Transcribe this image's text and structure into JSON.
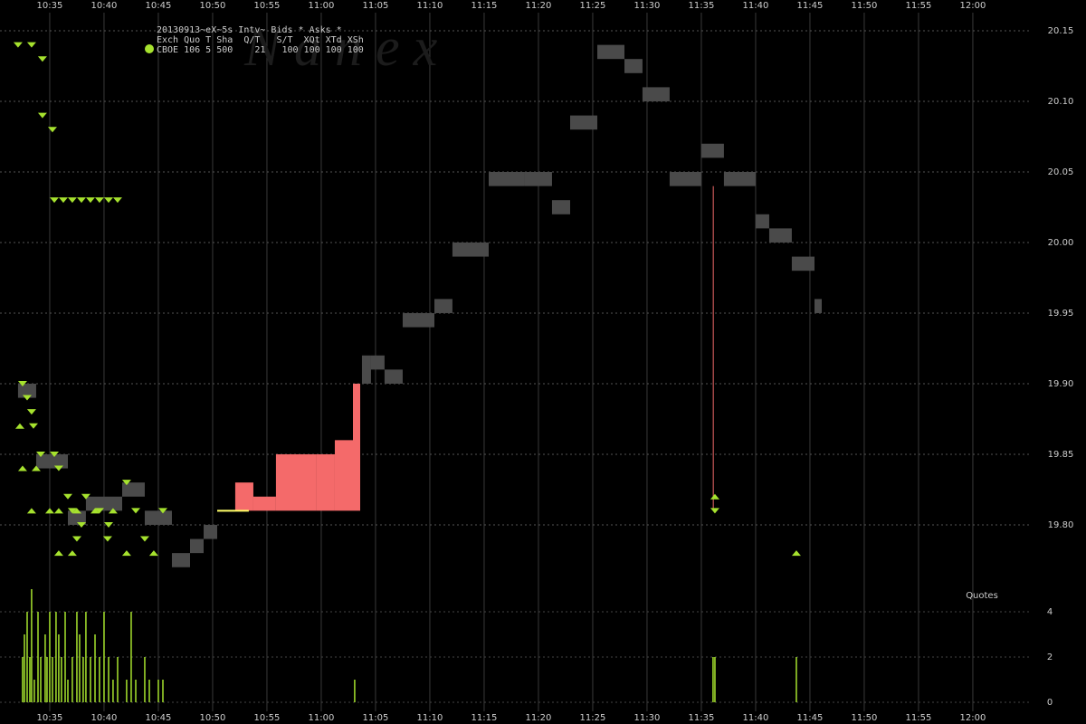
{
  "chart_data": {
    "type": "quote",
    "header": [
      "20130913~eX~5s Intv~ Bids * Asks *",
      "Exch Quo T Sha  Q/T   S/T  XQt XTd XSh",
      "CBOE 106 5 500    21   100 100 100 100"
    ],
    "watermark": "N a n e x",
    "quotes_label": "Quotes",
    "xlim": [
      630.42,
      722.92
    ],
    "xticks": [
      {
        "value": 635,
        "label": "10:35"
      },
      {
        "value": 640,
        "label": "10:40"
      },
      {
        "value": 645,
        "label": "10:45"
      },
      {
        "value": 650,
        "label": "10:50"
      },
      {
        "value": 655,
        "label": "10:55"
      },
      {
        "value": 660,
        "label": "11:00"
      },
      {
        "value": 665,
        "label": "11:05"
      },
      {
        "value": 670,
        "label": "11:10"
      },
      {
        "value": 675,
        "label": "11:15"
      },
      {
        "value": 680,
        "label": "11:20"
      },
      {
        "value": 685,
        "label": "11:25"
      },
      {
        "value": 690,
        "label": "11:30"
      },
      {
        "value": 695,
        "label": "11:35"
      },
      {
        "value": 700,
        "label": "11:40"
      },
      {
        "value": 705,
        "label": "11:45"
      },
      {
        "value": 710,
        "label": "11:50"
      },
      {
        "value": 715,
        "label": "11:55"
      },
      {
        "value": 720,
        "label": "12:00"
      }
    ],
    "ylim": [
      19.7615,
      20.1718
    ],
    "yticks": [
      20.15,
      {
        "value": 20.1,
        "label": "20.10"
      },
      20.05,
      {
        "value": 20.0,
        "label": "20.00"
      },
      19.95,
      {
        "value": 19.9,
        "label": "19.90"
      },
      19.85,
      {
        "value": 19.8,
        "label": "19.80"
      }
    ],
    "nbbo": {
      "color": "#4a4a4a",
      "x": [
        632.08,
        633.75,
        636.67,
        638.33,
        641.67,
        643.75,
        646.25,
        647.92,
        649.17,
        650.42,
        652.08,
        663.75,
        664.58,
        665.83,
        667.5,
        670.42,
        672.08,
        675.42,
        678.75,
        681.25,
        682.92,
        685.42,
        687.92,
        689.58,
        692.08,
        695,
        697.08,
        700,
        701.25,
        703.33,
        705.42
      ],
      "bid": [
        19.89,
        19.84,
        19.8,
        19.81,
        19.82,
        19.8,
        19.77,
        19.78,
        19.79,
        19.81,
        null,
        19.9,
        19.91,
        19.9,
        19.94,
        19.95,
        19.99,
        20.04,
        20.04,
        20.02,
        20.08,
        20.13,
        20.12,
        20.1,
        20.04,
        20.06,
        20.04,
        20.01,
        20.0,
        19.98,
        19.95
      ],
      "ask": [
        19.9,
        19.85,
        19.81,
        19.82,
        19.83,
        19.81,
        19.78,
        19.79,
        19.8,
        19.81,
        null,
        19.92,
        19.92,
        19.91,
        19.95,
        19.96,
        20.0,
        20.05,
        20.05,
        20.03,
        20.09,
        20.14,
        20.13,
        20.11,
        20.05,
        20.07,
        20.05,
        20.02,
        20.01,
        19.99,
        19.96
      ]
    },
    "wide_nbbo": {
      "color": "#f46a6a",
      "x": [
        652.08,
        653.75,
        655.83,
        659.58,
        661.25,
        662.92
      ],
      "bid": [
        19.81,
        19.81,
        19.81,
        19.81,
        19.81,
        19.81
      ],
      "ask": [
        19.83,
        19.82,
        19.85,
        19.85,
        19.86,
        19.9
      ]
    },
    "dip": {
      "color": "#f46a6a",
      "x": 696.1,
      "bid": 19.81,
      "ask": 20.04
    },
    "trades": {
      "color": "#ffff66",
      "x": [
        650.42,
        653.33
      ],
      "values": [
        19.81,
        19.81
      ]
    },
    "cboe": {
      "color": "#a6e22e",
      "ask_x": [
        632.08,
        633.33,
        634.33,
        634.33,
        635.25,
        635.42,
        636.25,
        637.08,
        637.92,
        638.75,
        639.58,
        640.42,
        641.25,
        632.5,
        632.92,
        633.33,
        633.5,
        634.17,
        635.42,
        635.83,
        642.08,
        636.67,
        638.33,
        637.08,
        639.58,
        642.92,
        645.42,
        637.92,
        640.42,
        637.5,
        640.33,
        643.75,
        696.25
      ],
      "ask": [
        20.14,
        20.14,
        20.13,
        20.09,
        20.08,
        20.03,
        20.03,
        20.03,
        20.03,
        20.03,
        20.03,
        20.03,
        20.03,
        19.9,
        19.89,
        19.88,
        19.87,
        19.85,
        19.85,
        19.84,
        19.83,
        19.82,
        19.82,
        19.81,
        19.81,
        19.81,
        19.81,
        19.8,
        19.8,
        19.79,
        19.79,
        19.79,
        19.81
      ],
      "bid_x": [
        632.25,
        632.5,
        633.75,
        633.33,
        635,
        635.83,
        637.5,
        639.17,
        640.83,
        635.83,
        637.08,
        642.08,
        644.58,
        696.25,
        703.75
      ],
      "bid": [
        19.87,
        19.84,
        19.84,
        19.81,
        19.81,
        19.81,
        19.81,
        19.81,
        19.81,
        19.78,
        19.78,
        19.78,
        19.78,
        19.82,
        19.78
      ]
    },
    "volume": {
      "color": "#a6e22e",
      "ylim": [
        0,
        5
      ],
      "yticks": [
        0,
        2,
        4
      ],
      "x": [
        632.5,
        632.67,
        632.92,
        633.17,
        633.33,
        633.58,
        633.92,
        634.17,
        634.58,
        634.75,
        635,
        635.25,
        635.58,
        635.83,
        636.08,
        636.42,
        636.67,
        637.08,
        637.5,
        637.75,
        638.08,
        638.33,
        638.75,
        639.17,
        639.58,
        640,
        640.42,
        640.83,
        641.25,
        642.08,
        642.5,
        642.92,
        643.75,
        644.17,
        645,
        645.42,
        663.08,
        696.08,
        696.25,
        703.75
      ],
      "values": [
        2,
        3,
        4,
        2,
        5,
        1,
        4,
        2,
        3,
        2,
        4,
        2,
        4,
        3,
        2,
        4,
        1,
        2,
        4,
        3,
        2,
        4,
        2,
        3,
        2,
        4,
        2,
        1,
        2,
        1,
        4,
        1,
        2,
        1,
        1,
        1,
        1,
        2,
        2,
        2
      ]
    }
  }
}
